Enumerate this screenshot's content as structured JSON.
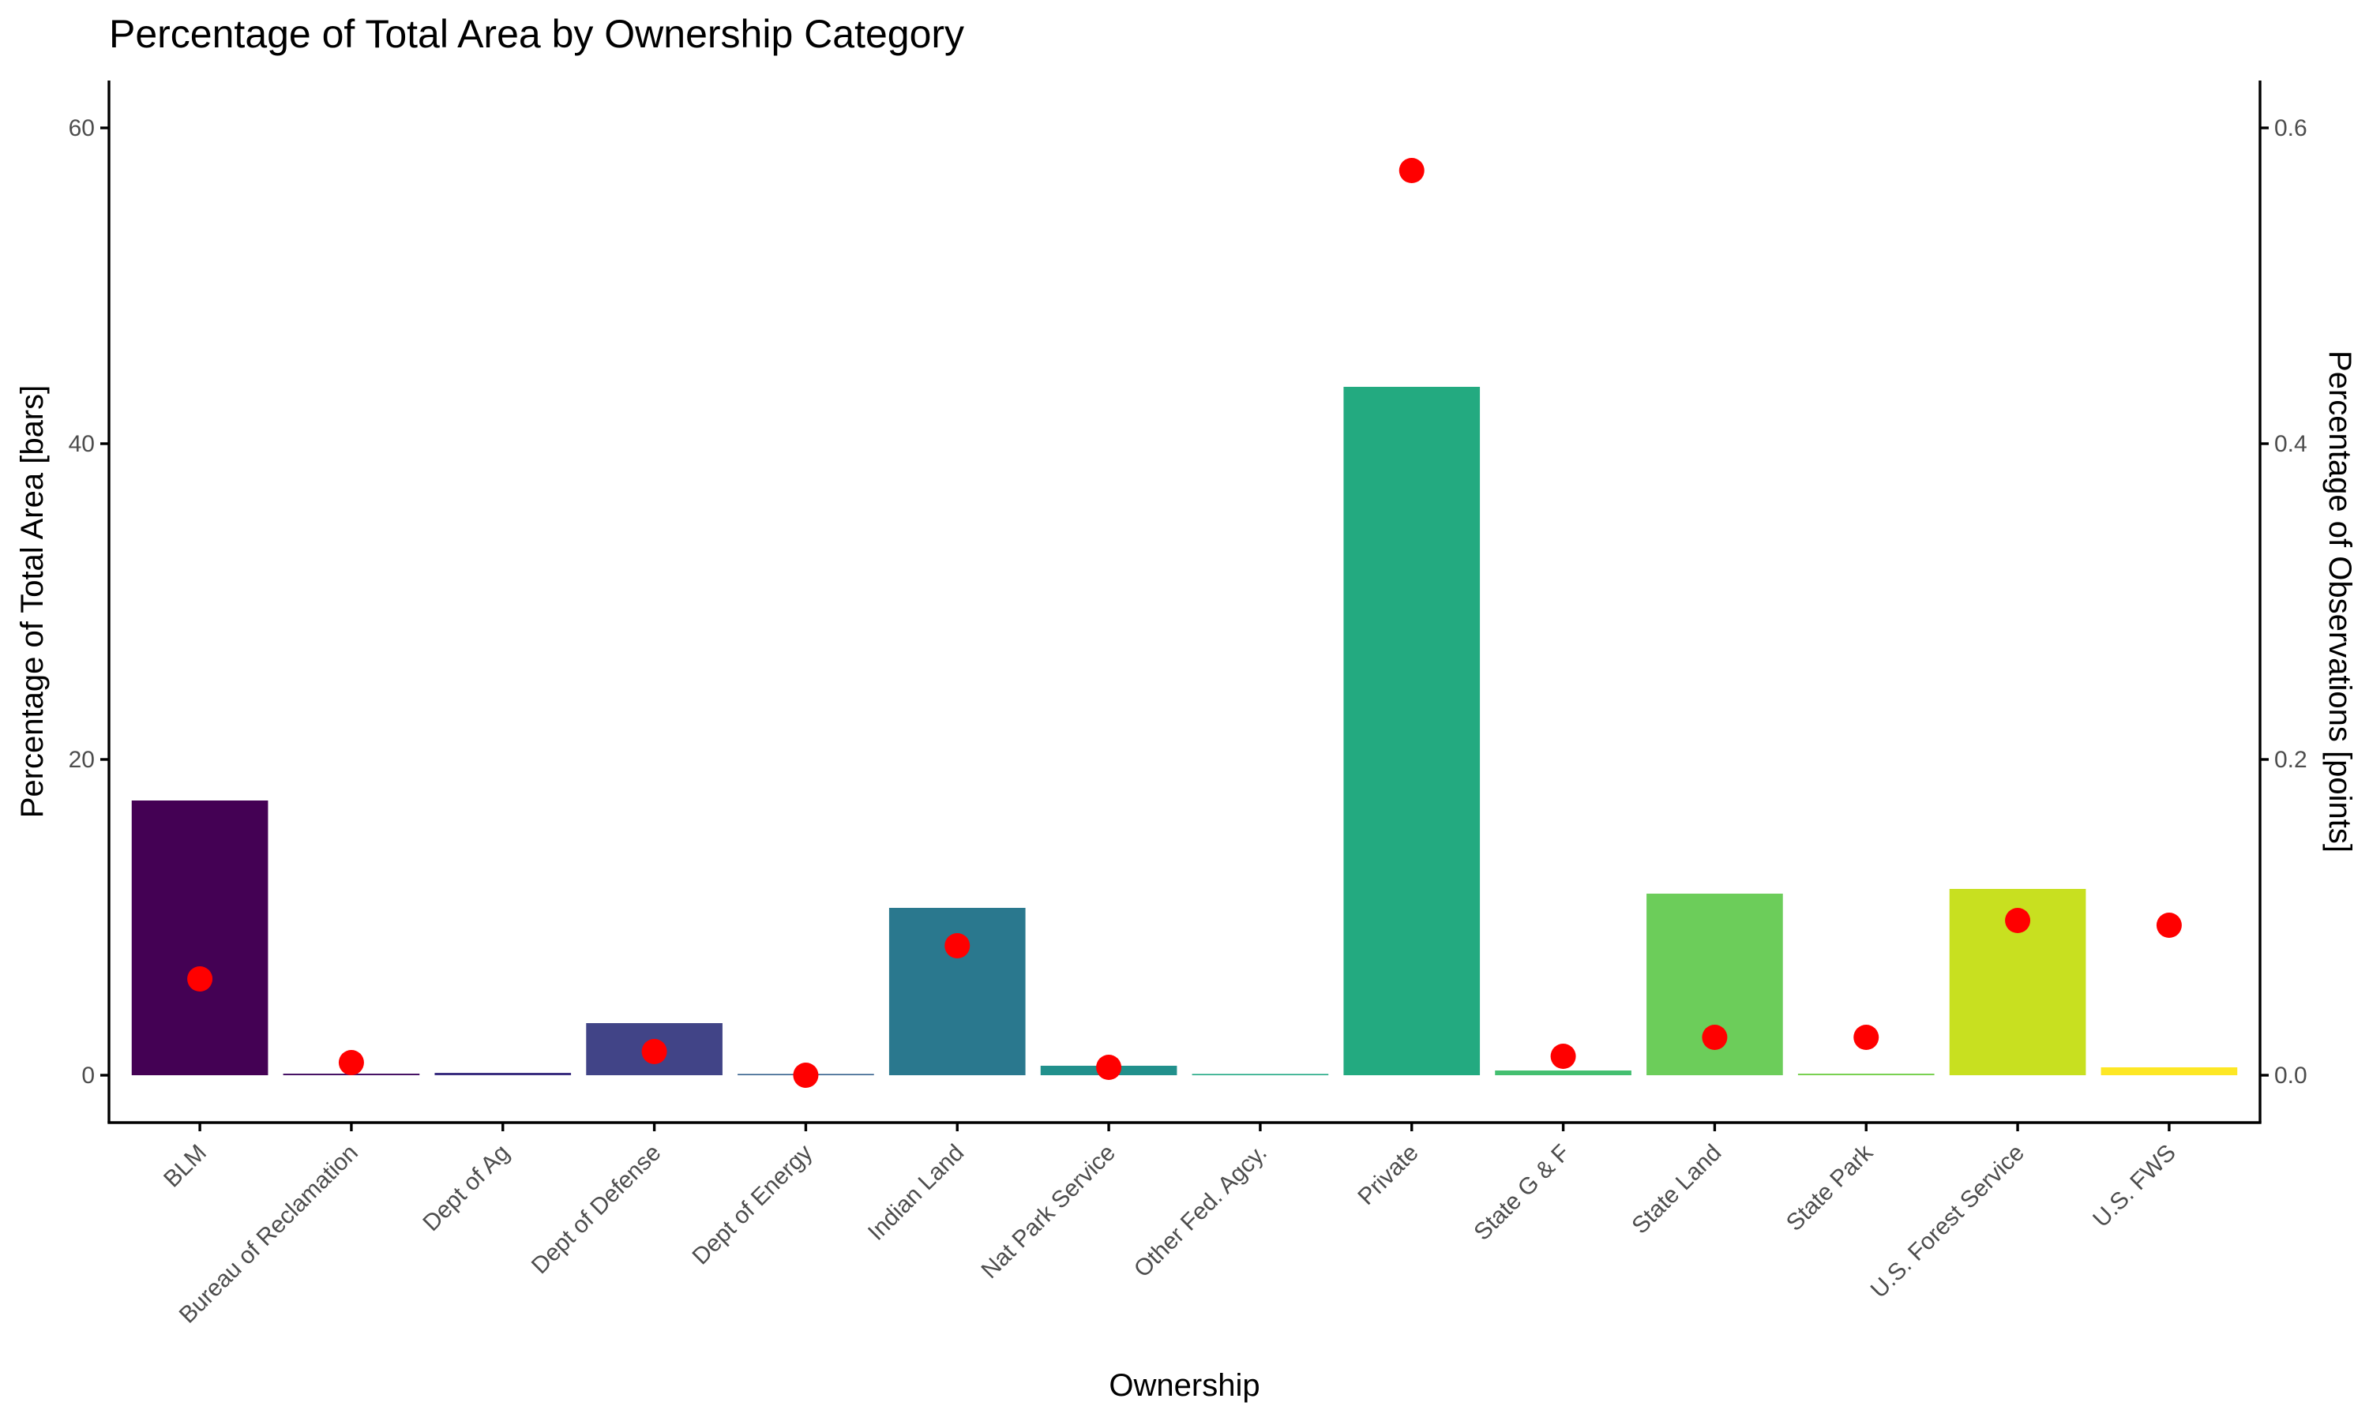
{
  "chart_data": {
    "type": "bar",
    "title": "Percentage of Total Area by Ownership Category",
    "xlabel": "Ownership",
    "ylabel": "Percentage of Total Area [bars]",
    "ylabel_right": "Percentage of Observations [points]",
    "ylim": [
      -3,
      63
    ],
    "ylim_right": [
      -0.03,
      0.63
    ],
    "yticks": [
      "0",
      "20",
      "40",
      "60"
    ],
    "yticks_right": [
      "0.0",
      "0.2",
      "0.4",
      "0.6"
    ],
    "grid": false,
    "legend": "none",
    "categories": [
      "BLM",
      "Bureau of Reclamation",
      "Dept of Ag",
      "Dept of Defense",
      "Dept of Energy",
      "Indian Land",
      "Nat Park Service",
      "Other Fed. Agcy.",
      "Private",
      "State G & F",
      "State Land",
      "State Park",
      "U.S. Forest Service",
      "U.S. FWS"
    ],
    "series": [
      {
        "type": "bar",
        "axis": "left",
        "values": [
          17.4,
          0.1,
          0.15,
          3.3,
          0.05,
          10.6,
          0.6,
          0.0,
          43.6,
          0.3,
          11.5,
          0.1,
          11.8,
          0.5
        ],
        "colors": [
          "#440154",
          "#471365",
          "#3b2f80",
          "#414487",
          "#35608d",
          "#2a788e",
          "#21908c",
          "#22a884",
          "#23aa80",
          "#44bf70",
          "#6ccd5a",
          "#7ad151",
          "#c8e020",
          "#fde725"
        ]
      },
      {
        "type": "scatter",
        "axis": "right",
        "color": "#ff0000",
        "values": [
          0.061,
          0.008,
          null,
          0.015,
          0.0,
          0.082,
          0.005,
          null,
          0.573,
          0.012,
          0.024,
          0.024,
          0.098,
          0.095
        ]
      }
    ]
  }
}
